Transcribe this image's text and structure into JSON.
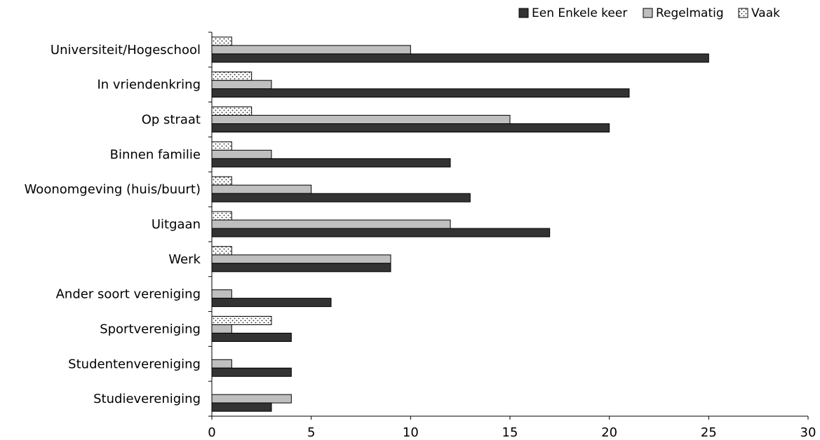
{
  "chart_data": {
    "type": "bar",
    "orientation": "horizontal",
    "title": "",
    "xlabel": "",
    "ylabel": "",
    "categories": [
      "Universiteit/Hogeschool",
      "In vriendenkring",
      "Op straat",
      "Binnen familie",
      "Woonomgeving (huis/buurt)",
      "Uitgaan",
      "Werk",
      "Ander soort vereniging",
      "Sportvereniging",
      "Studentenvereniging",
      "Studievereniging"
    ],
    "series": [
      {
        "name": "Een Enkele keer",
        "color": "#333333",
        "pattern": "solid",
        "values": [
          25,
          21,
          20,
          12,
          13,
          17,
          9,
          6,
          4,
          4,
          3
        ]
      },
      {
        "name": "Regelmatig",
        "color": "#bfbfbf",
        "pattern": "solid",
        "values": [
          10,
          3,
          15,
          3,
          5,
          12,
          9,
          1,
          1,
          1,
          4
        ]
      },
      {
        "name": "Vaak",
        "color": "#ffffff",
        "pattern": "dotted",
        "values": [
          1,
          2,
          2,
          1,
          1,
          1,
          1,
          0,
          3,
          0,
          0
        ]
      }
    ],
    "xlim": [
      0,
      30
    ],
    "xticks": [
      0,
      5,
      10,
      15,
      20,
      25,
      30
    ],
    "grid": false,
    "legend_position": "top-right"
  }
}
